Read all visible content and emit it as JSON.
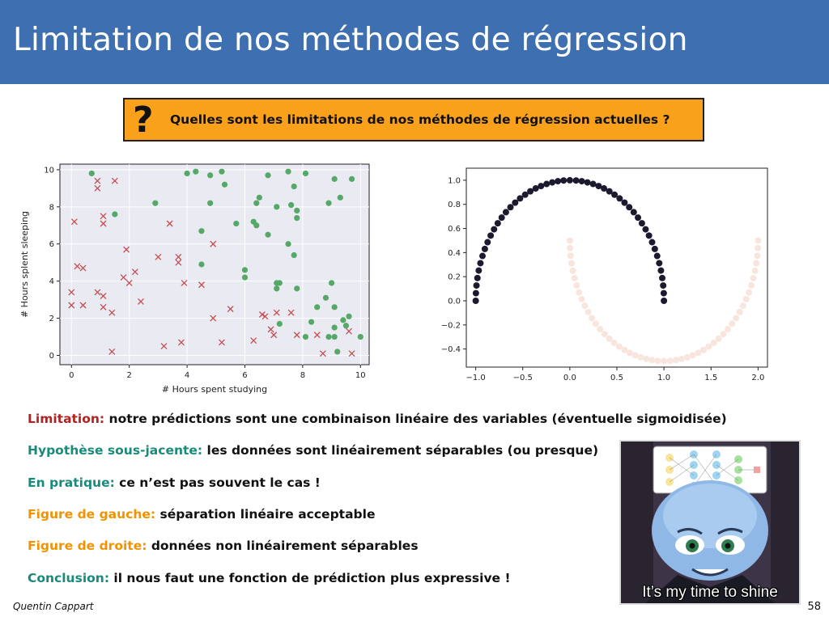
{
  "slide": {
    "title": "Limitation de nos méthodes de régression",
    "question_icon": "question-mark-icon",
    "question": "Quelles sont les limitations de nos méthodes de régression actuelles ?",
    "bullets": [
      {
        "label": "Limitation:",
        "text": " notre prédictions sont une combinaison linéaire des variables (éventuelle sigmoidisée)",
        "color": "#b22222"
      },
      {
        "label": "Hypothèse sous-jacente:",
        "text": " les données sont linéairement séparables (ou presque)",
        "color": "#1a8a7a"
      },
      {
        "label": "En pratique:",
        "text": " ce n’est pas souvent le cas !",
        "color": "#1a8a7a"
      },
      {
        "label": "Figure de gauche:",
        "text": " séparation linéaire acceptable",
        "color": "#f39200"
      },
      {
        "label": "Figure de droite:",
        "text": " données non linéairement séparables",
        "color": "#f39200"
      },
      {
        "label": "Conclusion:",
        "text": " il nous faut une fonction de prédiction plus expressive !",
        "color": "#1a8a7a"
      }
    ],
    "meme_caption": "It’s my time to shine",
    "author": "Quentin Cappart",
    "page_number": "58"
  },
  "chart_data": [
    {
      "type": "scatter",
      "xlabel": "# Hours spent studying",
      "ylabel": "# Hours splent sleeping",
      "xlim": [
        -0.4,
        10.3
      ],
      "ylim": [
        -0.5,
        10.3
      ],
      "xticks": [
        "0",
        "2",
        "4",
        "6",
        "8",
        "10"
      ],
      "yticks": [
        "0",
        "2",
        "4",
        "6",
        "8",
        "10"
      ],
      "series": [
        {
          "marker": "circle",
          "color": "#55a868",
          "points": [
            [
              0.7,
              9.8
            ],
            [
              4,
              9.8
            ],
            [
              4.3,
              9.9
            ],
            [
              4.8,
              9.7
            ],
            [
              5.2,
              9.9
            ],
            [
              5.3,
              9.2
            ],
            [
              6.8,
              9.7
            ],
            [
              7.5,
              9.9
            ],
            [
              7.7,
              9.1
            ],
            [
              8.1,
              9.8
            ],
            [
              9.1,
              9.5
            ],
            [
              9.7,
              9.5
            ],
            [
              1.5,
              7.6
            ],
            [
              2.9,
              8.2
            ],
            [
              4.8,
              8.2
            ],
            [
              6.4,
              8.2
            ],
            [
              6.5,
              8.5
            ],
            [
              7.1,
              8
            ],
            [
              7.6,
              8.1
            ],
            [
              7.8,
              7.8
            ],
            [
              7.8,
              7.4
            ],
            [
              8.9,
              8.2
            ],
            [
              9.3,
              8.5
            ],
            [
              4.5,
              6.7
            ],
            [
              5.7,
              7.1
            ],
            [
              6.3,
              7.2
            ],
            [
              6.4,
              7
            ],
            [
              6.8,
              6.5
            ],
            [
              7.5,
              6
            ],
            [
              7.7,
              5.4
            ],
            [
              4.5,
              4.9
            ],
            [
              6,
              4.6
            ],
            [
              6,
              4.2
            ],
            [
              7.1,
              3.9
            ],
            [
              7.2,
              3.9
            ],
            [
              7.1,
              3.6
            ],
            [
              7.8,
              3.6
            ],
            [
              9,
              3.9
            ],
            [
              8.8,
              3.1
            ],
            [
              8.5,
              2.6
            ],
            [
              9.1,
              2.6
            ],
            [
              9.6,
              2.1
            ],
            [
              9.4,
              1.9
            ],
            [
              9.5,
              1.6
            ],
            [
              8.3,
              1.8
            ],
            [
              7.2,
              1.7
            ],
            [
              9.1,
              1.5
            ],
            [
              8.9,
              1
            ],
            [
              9.1,
              1
            ],
            [
              10,
              1
            ],
            [
              8.1,
              1
            ],
            [
              9.2,
              0.2
            ]
          ]
        },
        {
          "marker": "x",
          "color": "#c44e52",
          "points": [
            [
              0.9,
              9.4
            ],
            [
              0.9,
              9
            ],
            [
              1.5,
              9.4
            ],
            [
              0.1,
              7.2
            ],
            [
              1.1,
              7.5
            ],
            [
              1.1,
              7.1
            ],
            [
              3.4,
              7.1
            ],
            [
              4.9,
              6
            ],
            [
              1.9,
              5.7
            ],
            [
              3,
              5.3
            ],
            [
              3.7,
              5.3
            ],
            [
              3.7,
              5
            ],
            [
              0.2,
              4.8
            ],
            [
              0.4,
              4.7
            ],
            [
              2.2,
              4.5
            ],
            [
              1.8,
              4.2
            ],
            [
              2,
              3.9
            ],
            [
              3.9,
              3.9
            ],
            [
              4.5,
              3.8
            ],
            [
              0,
              3.4
            ],
            [
              0.9,
              3.4
            ],
            [
              1.1,
              3.2
            ],
            [
              2.4,
              2.9
            ],
            [
              0,
              2.7
            ],
            [
              0.4,
              2.7
            ],
            [
              1.1,
              2.6
            ],
            [
              1.4,
              2.3
            ],
            [
              5.5,
              2.5
            ],
            [
              6.6,
              2.2
            ],
            [
              6.7,
              2.1
            ],
            [
              7.1,
              2.3
            ],
            [
              7.6,
              2.3
            ],
            [
              4.9,
              2
            ],
            [
              6.9,
              1.4
            ],
            [
              7,
              1.1
            ],
            [
              7.8,
              1.1
            ],
            [
              9.6,
              1.3
            ],
            [
              8.5,
              1.1
            ],
            [
              6.3,
              0.8
            ],
            [
              5.2,
              0.7
            ],
            [
              3.8,
              0.7
            ],
            [
              3.2,
              0.5
            ],
            [
              1.4,
              0.2
            ],
            [
              8.7,
              0.1
            ],
            [
              9.7,
              0.1
            ]
          ]
        }
      ]
    },
    {
      "type": "scatter",
      "xlim": [
        -1.1,
        2.1
      ],
      "ylim": [
        -0.55,
        1.1
      ],
      "xticks": [
        "−1.0",
        "−0.5",
        "0.0",
        "0.5",
        "1.0",
        "1.5",
        "2.0"
      ],
      "yticks": [
        "−0.4",
        "−0.2",
        "0.0",
        "0.2",
        "0.4",
        "0.6",
        "0.8",
        "1.0"
      ],
      "series": [
        {
          "marker": "circle",
          "color": "#1c1a2e",
          "points": [
            [
              -1,
              0
            ],
            [
              -0.998,
              0.063
            ],
            [
              -0.992,
              0.127
            ],
            [
              -0.982,
              0.189
            ],
            [
              -0.968,
              0.251
            ],
            [
              -0.95,
              0.312
            ],
            [
              -0.928,
              0.372
            ],
            [
              -0.903,
              0.43
            ],
            [
              -0.874,
              0.486
            ],
            [
              -0.841,
              0.541
            ],
            [
              -0.805,
              0.593
            ],
            [
              -0.766,
              0.643
            ],
            [
              -0.724,
              0.69
            ],
            [
              -0.679,
              0.735
            ],
            [
              -0.631,
              0.776
            ],
            [
              -0.581,
              0.814
            ],
            [
              -0.529,
              0.849
            ],
            [
              -0.475,
              0.88
            ],
            [
              -0.42,
              0.908
            ],
            [
              -0.363,
              0.932
            ],
            [
              -0.306,
              0.952
            ],
            [
              -0.247,
              0.969
            ],
            [
              -0.187,
              0.982
            ],
            [
              -0.127,
              0.992
            ],
            [
              -0.066,
              0.998
            ],
            [
              0,
              1
            ],
            [
              0.066,
              0.998
            ],
            [
              0.127,
              0.992
            ],
            [
              0.187,
              0.982
            ],
            [
              0.247,
              0.969
            ],
            [
              0.306,
              0.952
            ],
            [
              0.363,
              0.932
            ],
            [
              0.42,
              0.908
            ],
            [
              0.475,
              0.88
            ],
            [
              0.529,
              0.849
            ],
            [
              0.581,
              0.814
            ],
            [
              0.631,
              0.776
            ],
            [
              0.679,
              0.735
            ],
            [
              0.724,
              0.69
            ],
            [
              0.766,
              0.643
            ],
            [
              0.805,
              0.593
            ],
            [
              0.841,
              0.541
            ],
            [
              0.874,
              0.486
            ],
            [
              0.903,
              0.43
            ],
            [
              0.928,
              0.372
            ],
            [
              0.95,
              0.312
            ],
            [
              0.968,
              0.251
            ],
            [
              0.982,
              0.189
            ],
            [
              0.992,
              0.127
            ],
            [
              0.998,
              0.063
            ],
            [
              1,
              0
            ]
          ]
        },
        {
          "marker": "circle",
          "color": "#f8e6de",
          "points": [
            [
              0,
              0.5
            ],
            [
              0.002,
              0.437
            ],
            [
              0.008,
              0.373
            ],
            [
              0.018,
              0.311
            ],
            [
              0.032,
              0.249
            ],
            [
              0.05,
              0.188
            ],
            [
              0.072,
              0.128
            ],
            [
              0.097,
              0.07
            ],
            [
              0.126,
              0.014
            ],
            [
              0.159,
              -0.041
            ],
            [
              0.195,
              -0.093
            ],
            [
              0.234,
              -0.143
            ],
            [
              0.276,
              -0.19
            ],
            [
              0.321,
              -0.235
            ],
            [
              0.369,
              -0.276
            ],
            [
              0.419,
              -0.314
            ],
            [
              0.471,
              -0.349
            ],
            [
              0.525,
              -0.38
            ],
            [
              0.58,
              -0.408
            ],
            [
              0.637,
              -0.432
            ],
            [
              0.694,
              -0.452
            ],
            [
              0.753,
              -0.469
            ],
            [
              0.813,
              -0.482
            ],
            [
              0.873,
              -0.492
            ],
            [
              0.934,
              -0.498
            ],
            [
              1,
              -0.5
            ],
            [
              1.066,
              -0.498
            ],
            [
              1.127,
              -0.492
            ],
            [
              1.187,
              -0.482
            ],
            [
              1.247,
              -0.469
            ],
            [
              1.306,
              -0.452
            ],
            [
              1.363,
              -0.432
            ],
            [
              1.42,
              -0.408
            ],
            [
              1.475,
              -0.38
            ],
            [
              1.529,
              -0.349
            ],
            [
              1.581,
              -0.314
            ],
            [
              1.631,
              -0.276
            ],
            [
              1.679,
              -0.235
            ],
            [
              1.724,
              -0.19
            ],
            [
              1.766,
              -0.143
            ],
            [
              1.805,
              -0.093
            ],
            [
              1.841,
              -0.041
            ],
            [
              1.874,
              0.014
            ],
            [
              1.903,
              0.07
            ],
            [
              1.928,
              0.128
            ],
            [
              1.95,
              0.188
            ],
            [
              1.968,
              0.249
            ],
            [
              1.982,
              0.311
            ],
            [
              1.992,
              0.373
            ],
            [
              1.998,
              0.437
            ],
            [
              2,
              0.5
            ]
          ]
        }
      ]
    }
  ]
}
